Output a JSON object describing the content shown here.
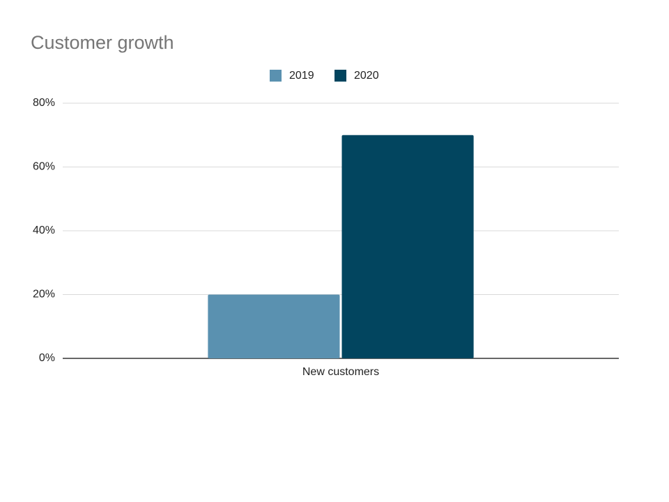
{
  "chart_data": {
    "type": "bar",
    "title": "Customer growth",
    "categories": [
      "New customers"
    ],
    "series": [
      {
        "name": "2019",
        "color": "#5a91b0",
        "values": [
          20
        ]
      },
      {
        "name": "2020",
        "color": "#02455f",
        "values": [
          70
        ]
      }
    ],
    "ylim": [
      0,
      80
    ],
    "yticks": [
      {
        "value": 0,
        "label": "0%"
      },
      {
        "value": 20,
        "label": "20%"
      },
      {
        "value": 40,
        "label": "40%"
      },
      {
        "value": 60,
        "label": "60%"
      },
      {
        "value": 80,
        "label": "80%"
      }
    ],
    "grid": true,
    "legend": "top"
  }
}
